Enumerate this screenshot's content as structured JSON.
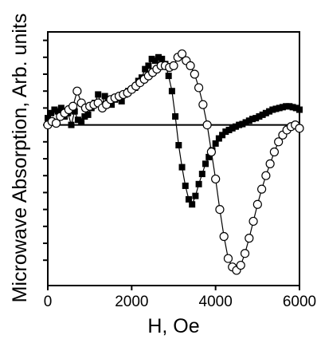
{
  "chart_data": {
    "type": "scatter",
    "xlabel": "H, Oe",
    "ylabel": "Microwave Absorption, Arb. units",
    "xlim": [
      0,
      6000
    ],
    "ylim": [
      -9.5,
      5.5
    ],
    "x_ticks": [
      0,
      2000,
      4000,
      6000
    ],
    "x_tick_labels": [
      "0",
      "2000",
      "4000",
      "6000"
    ],
    "y_ticks": [
      -8,
      -7,
      -6,
      -5,
      -4,
      -3,
      -2,
      -1,
      0,
      1,
      2,
      3,
      4,
      5
    ],
    "y_tick_labels_shown": false,
    "zero_line": true,
    "grid": false,
    "legend": "none",
    "series": [
      {
        "marker": "filled-square",
        "color": "#000000",
        "x": [
          0,
          80,
          160,
          240,
          320,
          400,
          480,
          560,
          640,
          720,
          800,
          880,
          960,
          1040,
          1120,
          1200,
          1280,
          1360,
          1440,
          1520,
          1600,
          1680,
          1760,
          1840,
          1920,
          2000,
          2080,
          2160,
          2240,
          2320,
          2400,
          2480,
          2560,
          2640,
          2720,
          2800,
          2880,
          2960,
          3040,
          3120,
          3200,
          3280,
          3360,
          3440,
          3520,
          3600,
          3680,
          3760,
          3840,
          3920,
          4000,
          4080,
          4160,
          4240,
          4320,
          4400,
          4480,
          4560,
          4640,
          4720,
          4800,
          4880,
          4960,
          5040,
          5120,
          5200,
          5280,
          5360,
          5440,
          5520,
          5600,
          5680,
          5760,
          5840,
          5920,
          6000
        ],
        "y": [
          0.4,
          0.7,
          0.9,
          0.8,
          1.0,
          0.5,
          0.7,
          0.0,
          0.8,
          0.3,
          0.2,
          0.5,
          0.6,
          1.0,
          1.3,
          1.8,
          1.1,
          1.7,
          1.5,
          1.2,
          1.5,
          1.6,
          1.4,
          1.8,
          2.0,
          2.1,
          2.2,
          2.6,
          2.8,
          3.3,
          3.5,
          3.9,
          3.8,
          4.0,
          3.9,
          3.6,
          2.9,
          2.0,
          0.5,
          -1.2,
          -2.5,
          -3.6,
          -4.4,
          -4.7,
          -4.2,
          -3.5,
          -2.9,
          -2.3,
          -1.9,
          -1.5,
          -1.1,
          -0.8,
          -0.6,
          -0.4,
          -0.3,
          -0.2,
          -0.1,
          0.0,
          0.05,
          0.15,
          0.25,
          0.35,
          0.4,
          0.5,
          0.6,
          0.7,
          0.8,
          0.9,
          0.95,
          1.0,
          1.05,
          1.1,
          1.1,
          1.05,
          1.0,
          0.9
        ]
      },
      {
        "marker": "open-circle",
        "color": "#000000",
        "x": [
          0,
          100,
          200,
          300,
          400,
          500,
          600,
          700,
          800,
          900,
          1000,
          1100,
          1200,
          1300,
          1400,
          1500,
          1600,
          1700,
          1800,
          1900,
          2000,
          2100,
          2200,
          2300,
          2400,
          2500,
          2600,
          2700,
          2800,
          2900,
          3000,
          3100,
          3200,
          3300,
          3400,
          3500,
          3600,
          3700,
          3800,
          3900,
          4000,
          4100,
          4200,
          4300,
          4400,
          4500,
          4600,
          4700,
          4800,
          4900,
          5000,
          5100,
          5200,
          5300,
          5400,
          5500,
          5600,
          5700,
          5800,
          5900,
          6000
        ],
        "y": [
          0.0,
          0.2,
          0.1,
          0.5,
          0.7,
          0.9,
          1.1,
          2.0,
          1.3,
          1.0,
          1.1,
          1.2,
          1.3,
          1.0,
          1.2,
          1.5,
          1.6,
          1.7,
          1.8,
          1.9,
          2.1,
          2.3,
          2.5,
          2.7,
          2.9,
          3.1,
          3.3,
          3.5,
          3.5,
          3.4,
          3.5,
          4.0,
          4.2,
          3.8,
          3.5,
          3.0,
          2.2,
          1.2,
          0.0,
          -1.6,
          -3.2,
          -5.0,
          -6.6,
          -7.9,
          -8.4,
          -8.6,
          -8.3,
          -7.6,
          -6.7,
          -5.7,
          -4.7,
          -3.8,
          -3.0,
          -2.3,
          -1.6,
          -1.0,
          -0.6,
          -0.3,
          -0.1,
          0.0,
          -0.2
        ]
      }
    ]
  }
}
